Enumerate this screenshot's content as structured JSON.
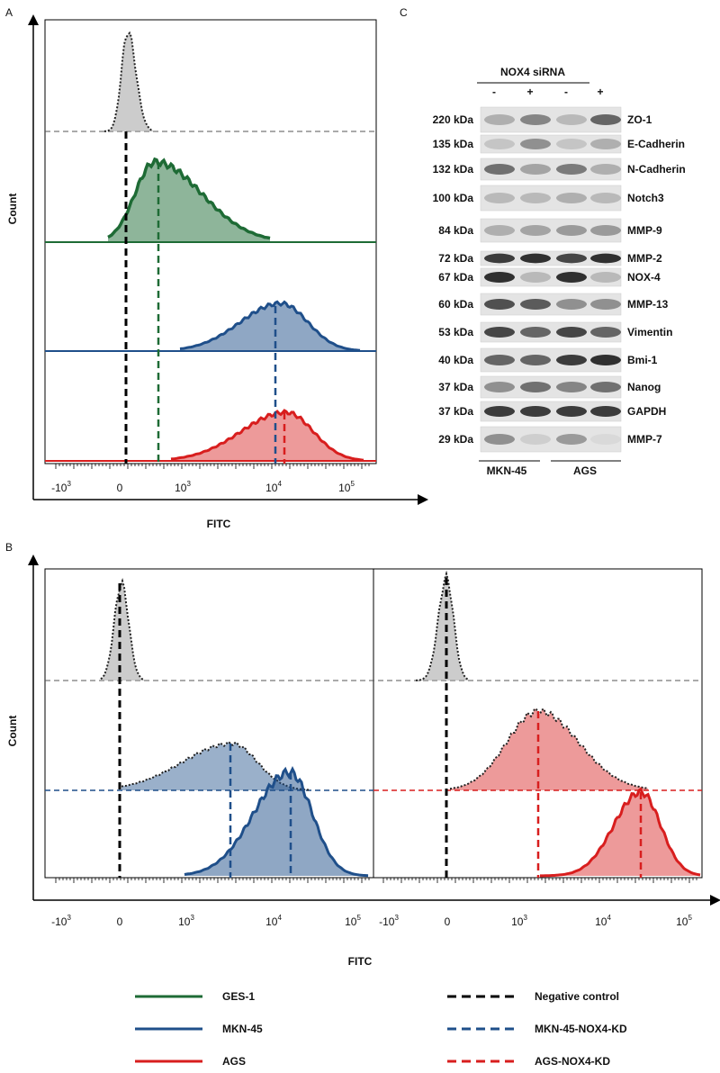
{
  "panel_a": {
    "label": "A",
    "y_label": "Count",
    "x_label": "FITC",
    "x_ticks": [
      {
        "base": "-10",
        "exp": "3"
      },
      {
        "base": "0"
      },
      {
        "base": "10",
        "exp": "3"
      },
      {
        "base": "10",
        "exp": "4"
      },
      {
        "base": "10",
        "exp": "5"
      }
    ]
  },
  "panel_b": {
    "label": "B",
    "y_label": "Count",
    "x_label": "FITC"
  },
  "panel_c": {
    "label": "C",
    "header": "NOX4 siRNA",
    "lanes": [
      "-",
      "+",
      "-",
      "+"
    ],
    "groups": [
      "MKN-45",
      "AGS"
    ],
    "rows": [
      {
        "size": "220 kDa",
        "protein": "ZO-1"
      },
      {
        "size": "135 kDa",
        "protein": "E-Cadherin"
      },
      {
        "size": "132 kDa",
        "protein": "N-Cadherin"
      },
      {
        "size": "100 kDa",
        "protein": "Notch3"
      },
      {
        "size": "84 kDa",
        "protein": "MMP-9"
      },
      {
        "size": "72 kDa",
        "protein": "MMP-2"
      },
      {
        "size": "67 kDa",
        "protein": "NOX-4"
      },
      {
        "size": "60 kDa",
        "protein": "MMP-13"
      },
      {
        "size": "53 kDa",
        "protein": "Vimentin"
      },
      {
        "size": "40 kDa",
        "protein": "Bmi-1"
      },
      {
        "size": "37 kDa",
        "protein": "Nanog"
      },
      {
        "size": "37 kDa",
        "protein": "GAPDH"
      },
      {
        "size": "29 kDa",
        "protein": "MMP-7"
      }
    ]
  },
  "legend": [
    "GES-1",
    "MKN-45",
    "AGS",
    "Negative control",
    "MKN-45-NOX4-KD",
    "AGS-NOX4-KD"
  ]
}
